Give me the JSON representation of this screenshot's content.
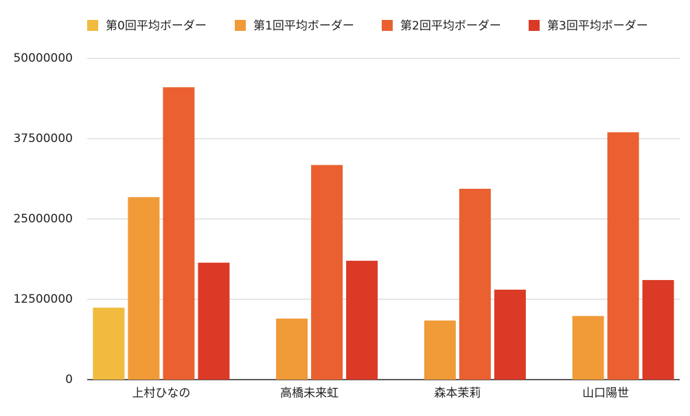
{
  "chart_data": {
    "type": "bar",
    "categories": [
      "上村ひなの",
      "高橋未来虹",
      "森本茉莉",
      "山口陽世"
    ],
    "series": [
      {
        "name": "第0回平均ボーダー",
        "color": "#f0bb3e",
        "values": [
          11200000,
          null,
          null,
          null
        ]
      },
      {
        "name": "第1回平均ボーダー",
        "color": "#f09a38",
        "values": [
          28400000,
          9500000,
          9200000,
          9900000
        ]
      },
      {
        "name": "第2回平均ボーダー",
        "color": "#ea6030",
        "values": [
          45500000,
          33400000,
          29700000,
          38500000
        ]
      },
      {
        "name": "第3回平均ボーダー",
        "color": "#db3b26",
        "values": [
          18200000,
          18500000,
          14000000,
          15500000
        ]
      }
    ],
    "ylim": [
      0,
      50000000
    ],
    "yticks": [
      0,
      12500000,
      25000000,
      37500000,
      50000000
    ],
    "grid": true,
    "legend": "top"
  }
}
